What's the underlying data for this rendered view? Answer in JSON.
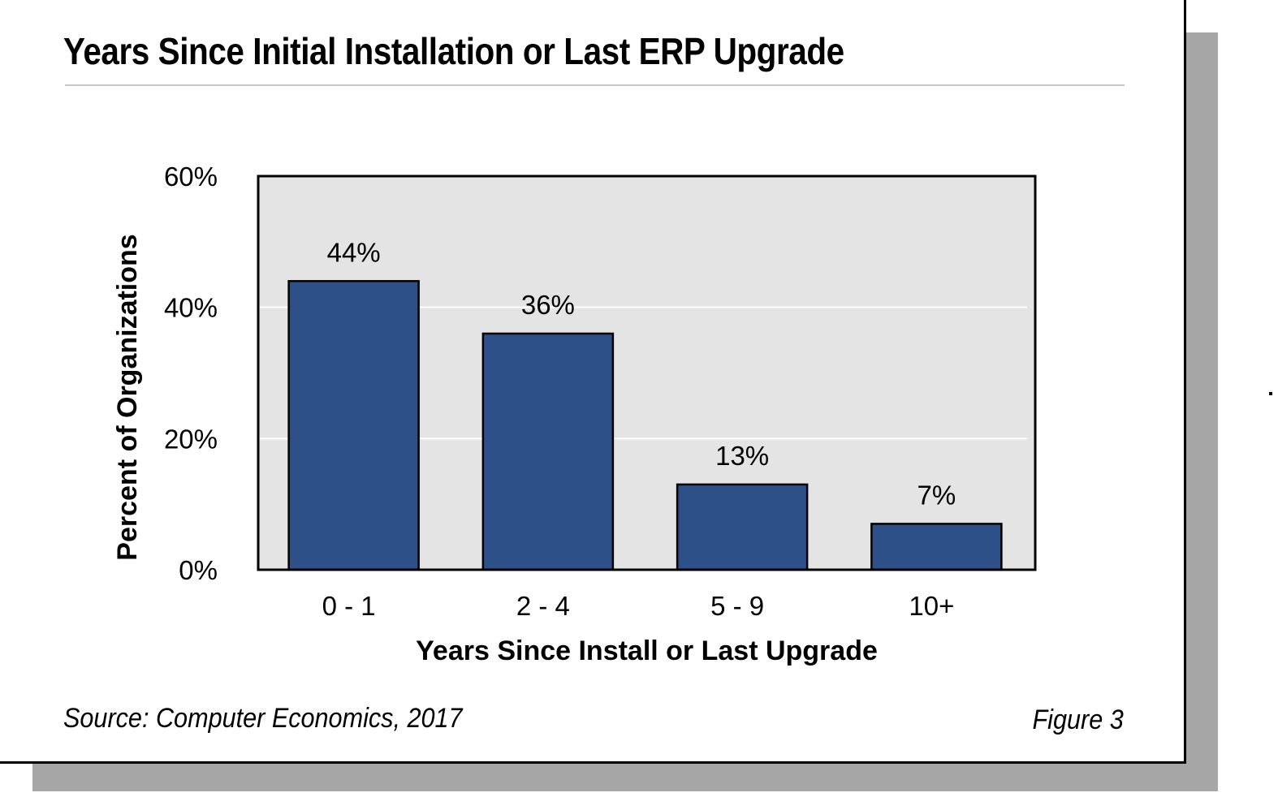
{
  "figure": {
    "title": "Years Since Initial Installation or Last ERP Upgrade",
    "source": "Source: Computer Economics, 2017",
    "figure_label": "Figure 3"
  },
  "colors": {
    "bar": "#2e5088",
    "plot_background": "#e4e4e4",
    "gridline": "#ffffff",
    "shadow": "#a6a6a6"
  },
  "chart_data": {
    "type": "bar",
    "title": "Years Since Initial Installation or Last ERP Upgrade",
    "xlabel": "Years Since Install or Last Upgrade",
    "ylabel": "Percent of Organizations",
    "categories": [
      "0 - 1",
      "2 - 4",
      "5 - 9",
      "10+"
    ],
    "values": [
      44,
      36,
      13,
      7
    ],
    "data_labels": [
      "44%",
      "36%",
      "13%",
      "7%"
    ],
    "ylim": [
      0,
      60
    ],
    "yticks": [
      0,
      20,
      40,
      60
    ],
    "ytick_labels": [
      "0%",
      "20%",
      "40%",
      "60%"
    ],
    "grid": true,
    "legend": "none"
  }
}
